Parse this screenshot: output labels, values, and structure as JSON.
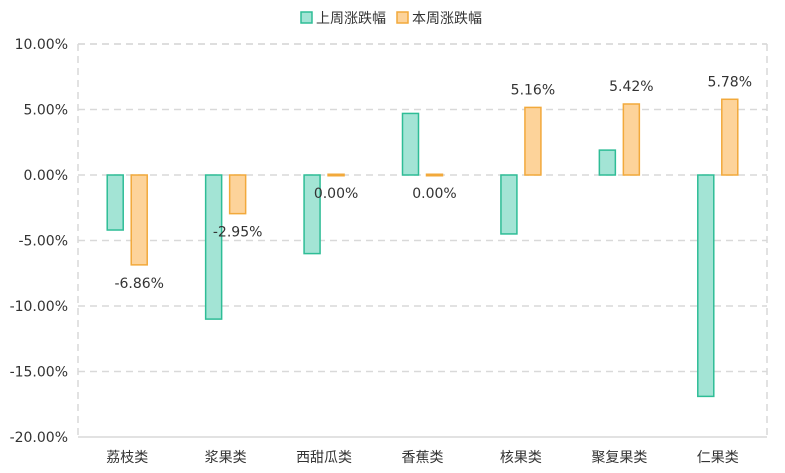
{
  "chart_data": {
    "type": "bar",
    "categories": [
      "荔枝类",
      "浆果类",
      "西甜瓜类",
      "香蕉类",
      "核果类",
      "聚复果类",
      "仁果类"
    ],
    "series": [
      {
        "name": "上周涨跌幅",
        "values": [
          -4.2,
          -11.0,
          -6.0,
          4.7,
          -4.5,
          1.9,
          -16.9
        ],
        "color": "#a3e4d5",
        "stroke": "#2ebd96"
      },
      {
        "name": "本周涨跌幅",
        "values": [
          -6.86,
          -2.95,
          0.0,
          0.0,
          5.16,
          5.42,
          5.78
        ],
        "color": "#fdd39a",
        "stroke": "#f2a93b"
      }
    ],
    "data_labels": [
      "-6.86%",
      "-2.95%",
      "0.00%",
      "0.00%",
      "5.16%",
      "5.42%",
      "5.78%"
    ],
    "ylim": [
      -20,
      10
    ],
    "yticks": [
      10,
      5,
      0,
      -5,
      -10,
      -15,
      -20
    ],
    "ytick_labels": [
      "10.00%",
      "5.00%",
      "0.00%",
      "-5.00%",
      "-10.00%",
      "-15.00%",
      "-20.00%"
    ],
    "grid": true,
    "legend": "top-center",
    "title": "",
    "xlabel": "",
    "ylabel": ""
  }
}
